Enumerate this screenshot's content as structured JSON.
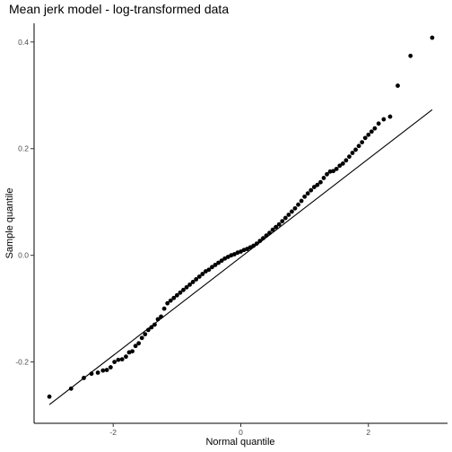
{
  "chart_data": {
    "type": "scatter",
    "title": "Mean jerk model - log-transformed data",
    "xlabel": "Normal quantile",
    "ylabel": "Sample quantile",
    "xlim": [
      -3.24,
      3.24
    ],
    "ylim": [
      -0.315,
      0.435
    ],
    "xticks": [
      -2,
      0,
      2
    ],
    "xtick_labels": [
      "-2",
      "0",
      "2"
    ],
    "yticks": [
      -0.2,
      0.0,
      0.2,
      0.4
    ],
    "ytick_labels": [
      "-0.2",
      "0.0",
      "0.2",
      "0.4"
    ],
    "grid": false,
    "legend": "none",
    "point_color": "#000000",
    "reference_line": {
      "x": [
        -3.0,
        3.0
      ],
      "y": [
        -0.28,
        0.273
      ]
    },
    "points": {
      "x": [
        -3.0,
        -2.66,
        -2.46,
        -2.34,
        -2.24,
        -2.16,
        -2.1,
        -2.04,
        -1.98,
        -1.92,
        -1.86,
        -1.8,
        -1.75,
        -1.7,
        -1.65,
        -1.6,
        -1.55,
        -1.5,
        -1.45,
        -1.4,
        -1.35,
        -1.3,
        -1.25,
        -1.2,
        -1.15,
        -1.1,
        -1.05,
        -1.0,
        -0.95,
        -0.9,
        -0.85,
        -0.8,
        -0.75,
        -0.7,
        -0.65,
        -0.6,
        -0.55,
        -0.5,
        -0.45,
        -0.4,
        -0.35,
        -0.3,
        -0.25,
        -0.2,
        -0.15,
        -0.1,
        -0.05,
        0.0,
        0.05,
        0.1,
        0.15,
        0.2,
        0.25,
        0.3,
        0.35,
        0.4,
        0.45,
        0.5,
        0.55,
        0.6,
        0.65,
        0.7,
        0.75,
        0.8,
        0.85,
        0.9,
        0.95,
        1.0,
        1.05,
        1.1,
        1.15,
        1.2,
        1.25,
        1.3,
        1.35,
        1.4,
        1.45,
        1.5,
        1.55,
        1.6,
        1.65,
        1.7,
        1.75,
        1.8,
        1.85,
        1.9,
        1.95,
        2.0,
        2.05,
        2.1,
        2.16,
        2.24,
        2.34,
        2.46,
        2.66,
        3.0
      ],
      "y": [
        -0.265,
        -0.25,
        -0.23,
        -0.222,
        -0.22,
        -0.216,
        -0.215,
        -0.21,
        -0.2,
        -0.196,
        -0.195,
        -0.19,
        -0.182,
        -0.18,
        -0.17,
        -0.165,
        -0.155,
        -0.148,
        -0.14,
        -0.135,
        -0.13,
        -0.12,
        -0.115,
        -0.1,
        -0.09,
        -0.085,
        -0.08,
        -0.075,
        -0.07,
        -0.065,
        -0.06,
        -0.055,
        -0.05,
        -0.045,
        -0.04,
        -0.035,
        -0.03,
        -0.027,
        -0.022,
        -0.018,
        -0.014,
        -0.01,
        -0.006,
        -0.003,
        0.0,
        0.002,
        0.005,
        0.007,
        0.01,
        0.012,
        0.015,
        0.018,
        0.022,
        0.027,
        0.032,
        0.037,
        0.042,
        0.048,
        0.053,
        0.058,
        0.064,
        0.07,
        0.076,
        0.082,
        0.088,
        0.095,
        0.102,
        0.11,
        0.116,
        0.122,
        0.128,
        0.132,
        0.137,
        0.145,
        0.152,
        0.157,
        0.158,
        0.162,
        0.168,
        0.172,
        0.178,
        0.185,
        0.192,
        0.198,
        0.205,
        0.212,
        0.22,
        0.226,
        0.232,
        0.238,
        0.247,
        0.255,
        0.26,
        0.318,
        0.374,
        0.408
      ]
    }
  }
}
